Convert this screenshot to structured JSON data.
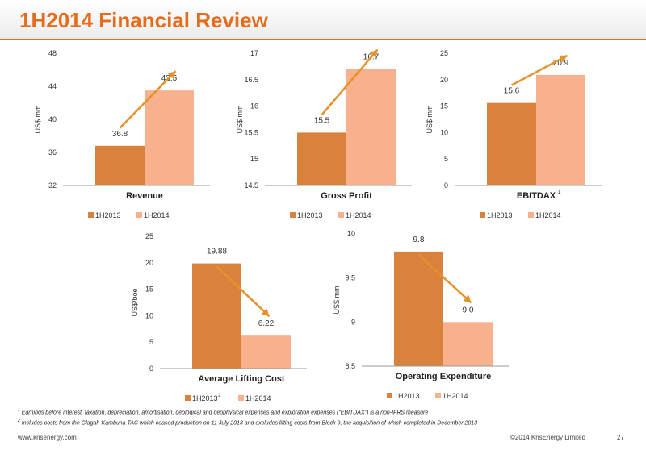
{
  "header": {
    "title": "1H2014 Financial Review"
  },
  "colors": {
    "accent": "#e46c1a",
    "bar_1h2013": "#d9823e",
    "bar_1h2014": "#f7b18c",
    "arrow": "#e6912a"
  },
  "chart_data": [
    {
      "type": "bar",
      "title": "Revenue",
      "ylabel": "US$ mm",
      "ylim": [
        32,
        48
      ],
      "yticks": [
        "32",
        "36",
        "40",
        "44",
        "48"
      ],
      "categories": [
        "1H2013",
        "1H2014"
      ],
      "values": [
        36.8,
        43.5
      ],
      "value_labels": [
        "36.8",
        "43.5"
      ],
      "legend": [
        "1H2013",
        "1H2014"
      ],
      "legend_sup": ""
    },
    {
      "type": "bar",
      "title": "Gross Profit",
      "ylabel": "US$ mm",
      "ylim": [
        14.5,
        17
      ],
      "yticks": [
        "14.5",
        "15",
        "15.5",
        "16",
        "16.5",
        "17"
      ],
      "categories": [
        "1H2013",
        "1H2014"
      ],
      "values": [
        15.5,
        16.7
      ],
      "value_labels": [
        "15.5",
        "16.7"
      ],
      "legend": [
        "1H2013",
        "1H2014"
      ],
      "legend_sup": ""
    },
    {
      "type": "bar",
      "title": "EBITDAX",
      "title_sup": "1",
      "ylabel": "US$ mm",
      "ylim": [
        0,
        25
      ],
      "yticks": [
        "0",
        "5",
        "10",
        "15",
        "20",
        "25"
      ],
      "categories": [
        "1H2013",
        "1H2014"
      ],
      "values": [
        15.6,
        20.9
      ],
      "value_labels": [
        "15.6",
        "20.9"
      ],
      "legend": [
        "1H2013",
        "1H2014"
      ],
      "legend_sup": ""
    },
    {
      "type": "bar",
      "title": "Average Lifting Cost",
      "ylabel": "US$/boe",
      "ylim": [
        0,
        25
      ],
      "yticks": [
        "0",
        "5",
        "10",
        "15",
        "20",
        "25"
      ],
      "categories": [
        "1H2013",
        "1H2014"
      ],
      "values": [
        19.88,
        6.22
      ],
      "value_labels": [
        "19.88",
        "6.22"
      ],
      "legend": [
        "1H2013",
        "1H2014"
      ],
      "legend_sup": "2"
    },
    {
      "type": "bar",
      "title": "Operating Expenditure",
      "ylabel": "US$ mm",
      "ylim": [
        8.5,
        10
      ],
      "yticks": [
        "8.5",
        "9",
        "9.5",
        "10"
      ],
      "categories": [
        "1H2013",
        "1H2014"
      ],
      "values": [
        9.8,
        9.0
      ],
      "value_labels": [
        "9.8",
        "9.0"
      ],
      "legend": [
        "1H2013",
        "1H2014"
      ],
      "legend_sup": ""
    }
  ],
  "footnotes": {
    "note1_marker": "1",
    "note1": "Earnings before interest, taxation, depreciation, amortisation, geological and geophysical expenses and exploration expenses (“EBITDAX”) is a non-IFRS measure",
    "note2_marker": "2",
    "note2": "Includes costs from the Glagah-Kambuna TAC which ceased production on 11 July 2013 and excludes lifting costs from Block 9, the acquisition of which completed in December 2013"
  },
  "footer": {
    "website": "www.krisenergy.com",
    "copyright": "©2014 KrisEnergy Limited",
    "page": "27"
  }
}
